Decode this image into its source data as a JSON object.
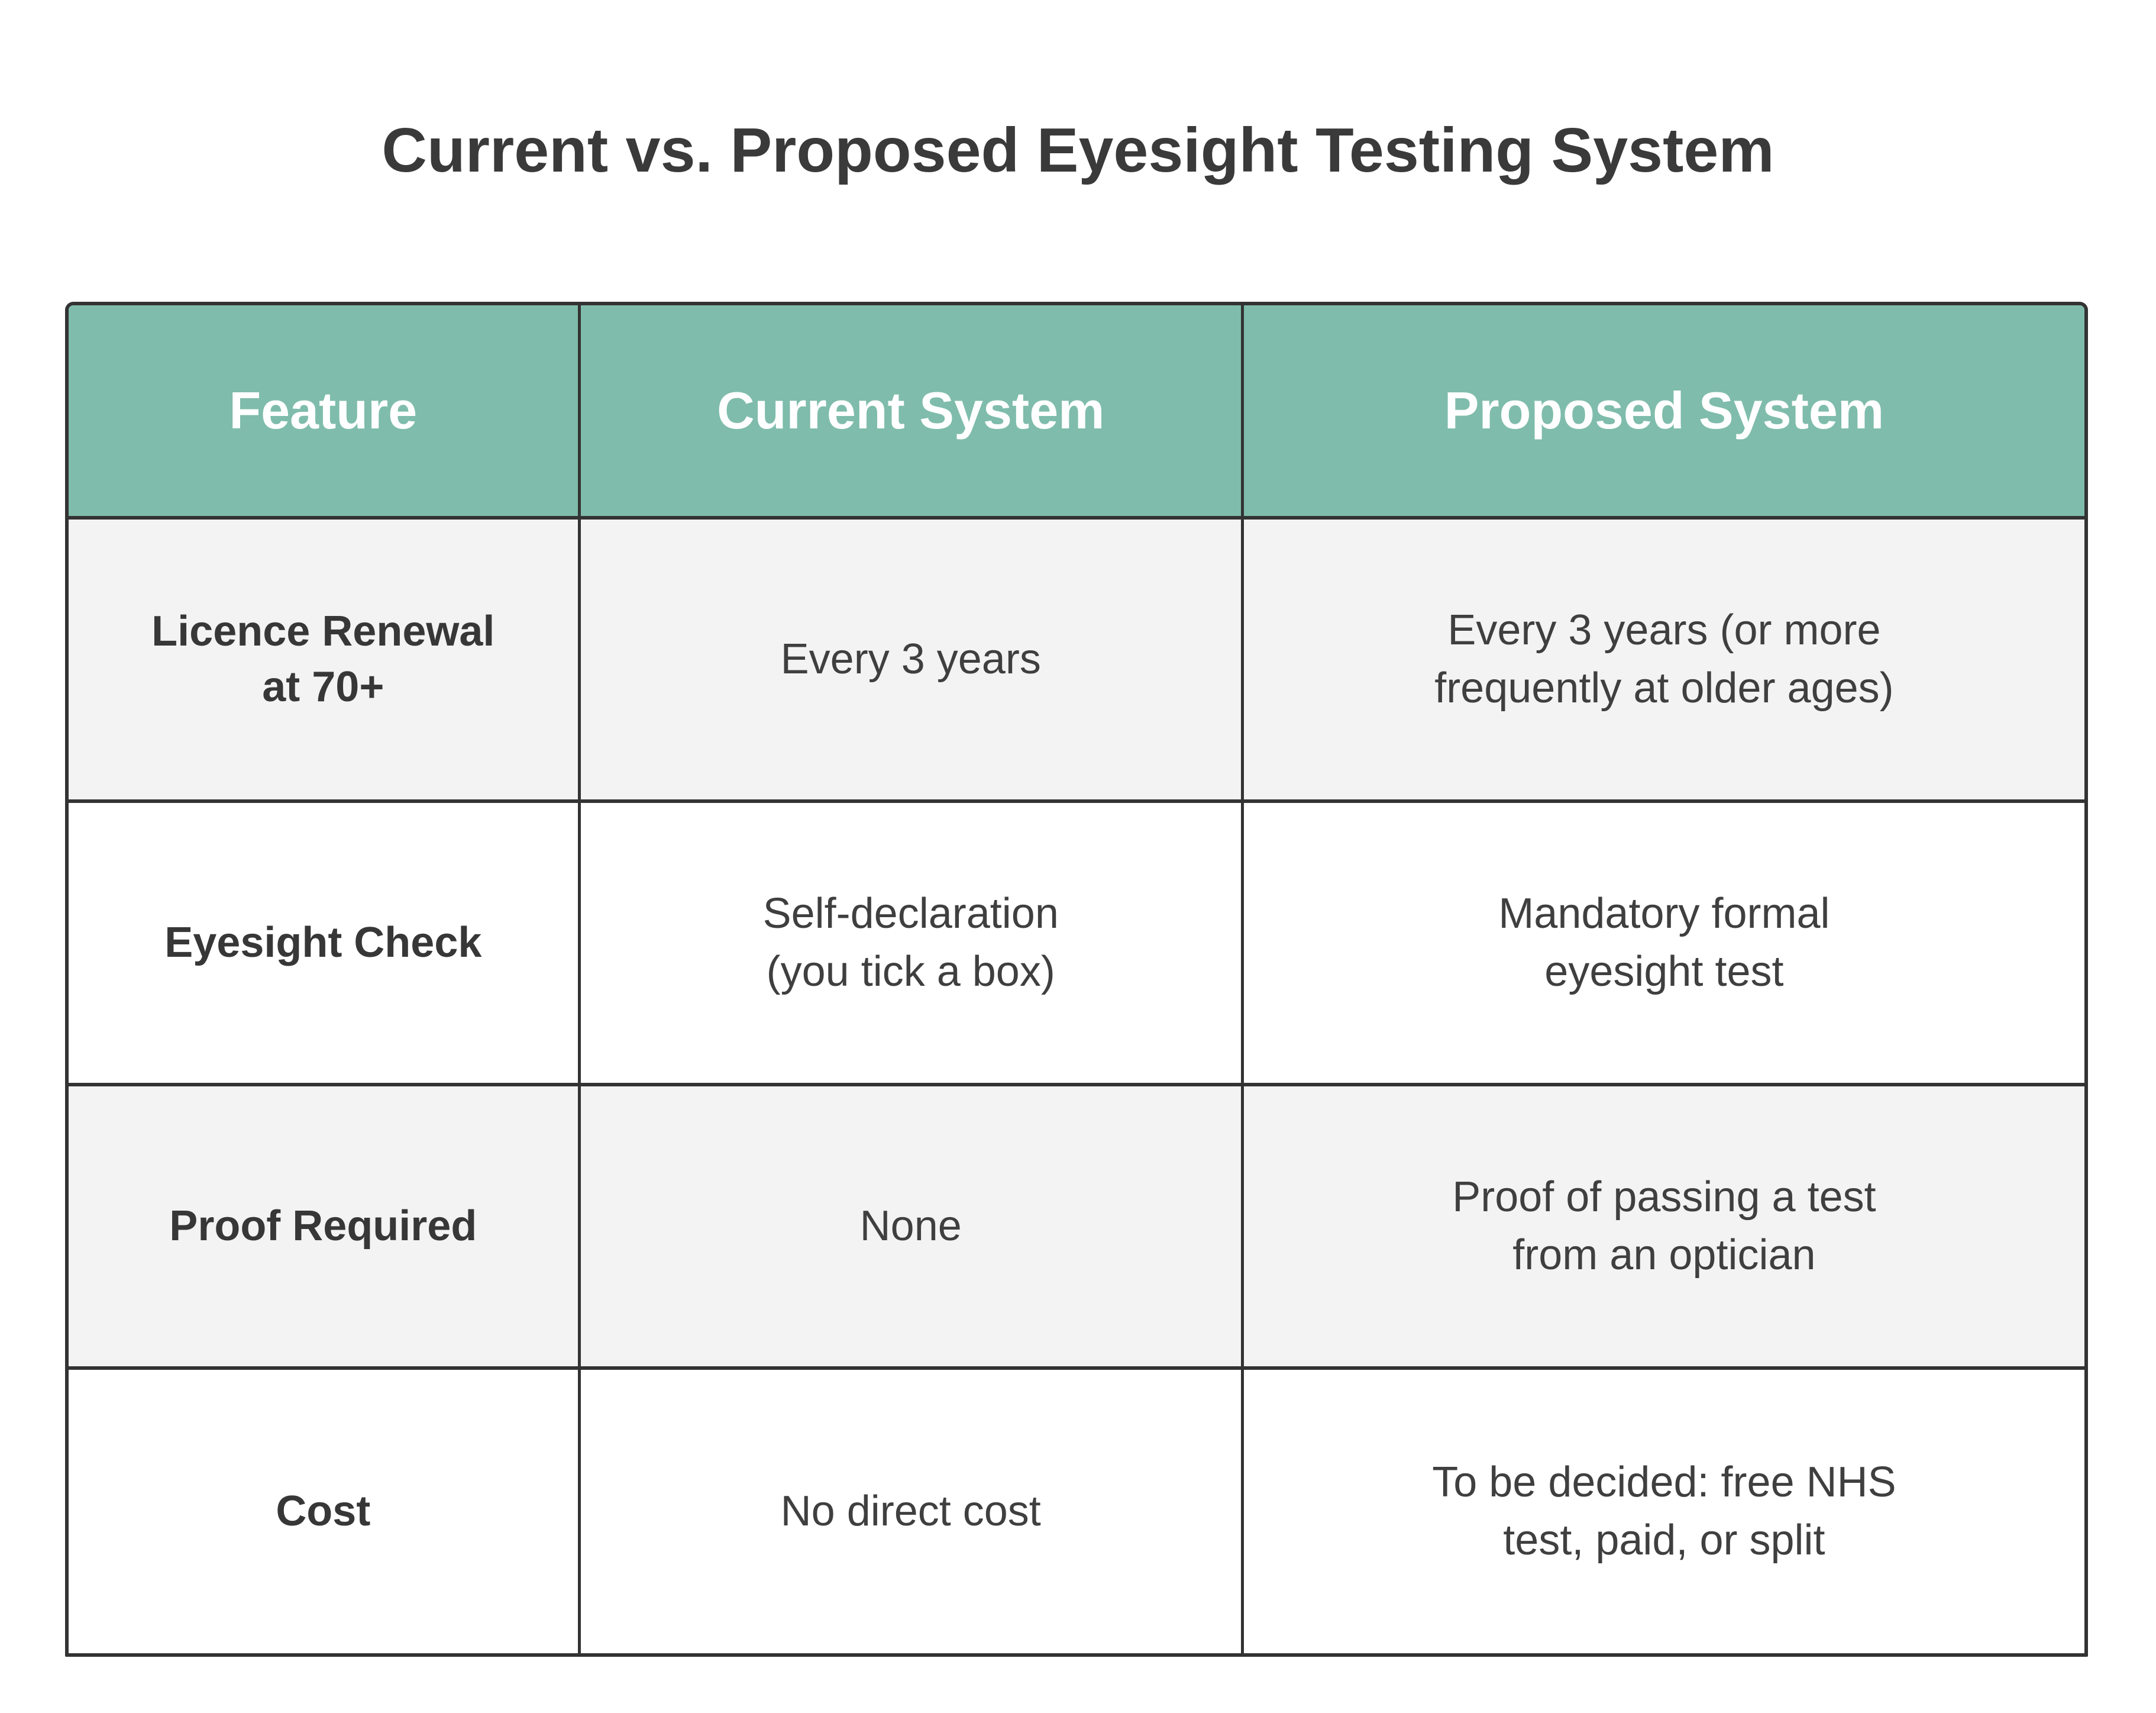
{
  "title": "Current vs. Proposed Eyesight Testing System",
  "table": {
    "columns": [
      "Feature",
      "Current System",
      "Proposed System"
    ],
    "rows": [
      {
        "feature": "Licence Renewal\nat 70+",
        "current": "Every 3 years",
        "proposed": "Every 3 years (or more\nfrequently at older ages)"
      },
      {
        "feature": "Eyesight Check",
        "current": "Self-declaration\n(you tick a box)",
        "proposed": "Mandatory formal\neyesight test"
      },
      {
        "feature": "Proof Required",
        "current": "None",
        "proposed": "Proof of passing a test\nfrom an optician"
      },
      {
        "feature": "Cost",
        "current": "No direct cost",
        "proposed": "To be decided: free NHS\ntest, paid, or split"
      }
    ]
  },
  "colors": {
    "header_bg": "#7fbcab",
    "header_text": "#ffffff",
    "border": "#333333",
    "row_alt_bg": "#f3f3f3",
    "row_bg": "#ffffff",
    "title_text": "#3a3a3a",
    "cell_text": "#3f3f3f"
  },
  "chart_data": {
    "type": "table",
    "title": "Current vs. Proposed Eyesight Testing System",
    "columns": [
      "Feature",
      "Current System",
      "Proposed System"
    ],
    "rows": [
      [
        "Licence Renewal at 70+",
        "Every 3 years",
        "Every 3 years (or more frequently at older ages)"
      ],
      [
        "Eyesight Check",
        "Self-declaration (you tick a box)",
        "Mandatory formal eyesight test"
      ],
      [
        "Proof Required",
        "None",
        "Proof of passing a test from an optician"
      ],
      [
        "Cost",
        "No direct cost",
        "To be decided: free NHS test, paid, or split"
      ]
    ],
    "layout_hints": {
      "header_fill": "#7fbcab",
      "zebra_striping": true,
      "grid": true,
      "text_align": "center"
    }
  }
}
